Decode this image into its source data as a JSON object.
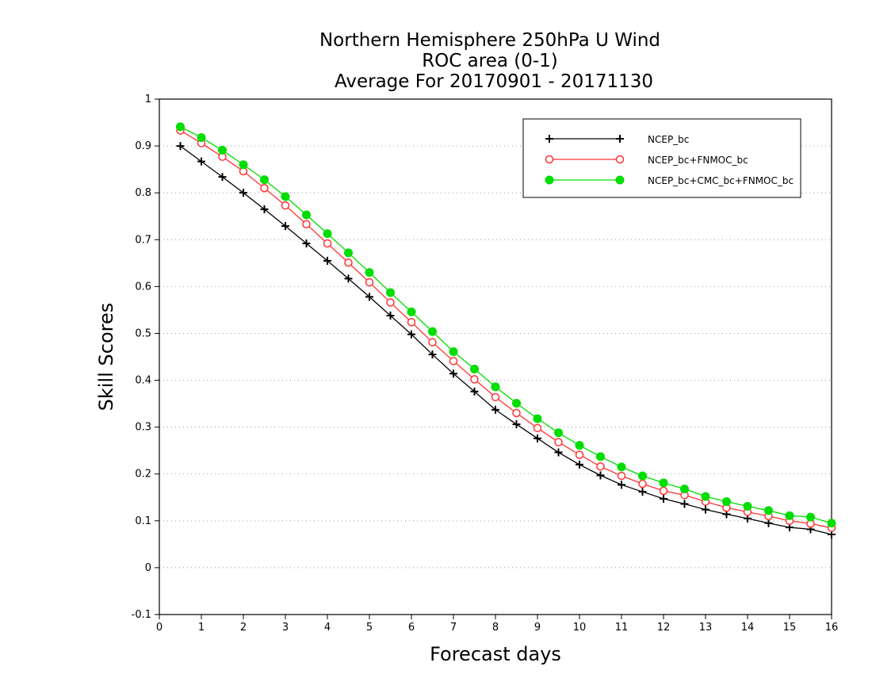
{
  "chart_data": {
    "type": "line",
    "title_lines": [
      "Northern Hemisphere 250hPa U Wind",
      "ROC area (0-1)",
      "Average For 20170901 - 20171130"
    ],
    "xlabel": "Forecast days",
    "ylabel": "Skill Scores",
    "xlim": [
      0,
      16
    ],
    "ylim": [
      -0.1,
      1
    ],
    "x_ticks": [
      "0",
      "1",
      "2",
      "3",
      "4",
      "5",
      "6",
      "7",
      "8",
      "9",
      "10",
      "11",
      "12",
      "13",
      "14",
      "15",
      "16"
    ],
    "y_ticks": [
      "-0.1",
      "0",
      "0.1",
      "0.2",
      "0.3",
      "0.4",
      "0.5",
      "0.6",
      "0.7",
      "0.8",
      "0.9",
      "1"
    ],
    "grid": "horizontal dotted",
    "legend_position": "top-right",
    "x": [
      0.5,
      1,
      1.5,
      2,
      2.5,
      3,
      3.5,
      4,
      4.5,
      5,
      5.5,
      6,
      6.5,
      7,
      7.5,
      8,
      8.5,
      9,
      9.5,
      10,
      10.5,
      11,
      11.5,
      12,
      12.5,
      13,
      13.5,
      14,
      14.5,
      15,
      15.5,
      16
    ],
    "series": [
      {
        "name": "NCEP_bc",
        "color": "#000000",
        "marker": "plus",
        "values": [
          0.9,
          0.867,
          0.834,
          0.8,
          0.765,
          0.729,
          0.692,
          0.655,
          0.617,
          0.578,
          0.538,
          0.498,
          0.455,
          0.414,
          0.376,
          0.337,
          0.306,
          0.276,
          0.246,
          0.22,
          0.197,
          0.177,
          0.162,
          0.147,
          0.136,
          0.124,
          0.114,
          0.105,
          0.095,
          0.086,
          0.082,
          0.071
        ]
      },
      {
        "name": "NCEP_bc+FNMOC_bc",
        "color": "#ff3333",
        "marker": "open-circle",
        "values": [
          0.933,
          0.906,
          0.877,
          0.846,
          0.81,
          0.773,
          0.733,
          0.692,
          0.651,
          0.609,
          0.566,
          0.524,
          0.481,
          0.441,
          0.402,
          0.364,
          0.33,
          0.298,
          0.268,
          0.241,
          0.216,
          0.196,
          0.179,
          0.164,
          0.155,
          0.141,
          0.128,
          0.119,
          0.11,
          0.1,
          0.094,
          0.085
        ]
      },
      {
        "name": "NCEP_bc+CMC_bc+FNMOC_bc",
        "color": "#00dd00",
        "marker": "filled-circle",
        "values": [
          0.941,
          0.918,
          0.891,
          0.86,
          0.828,
          0.792,
          0.753,
          0.713,
          0.672,
          0.63,
          0.587,
          0.546,
          0.504,
          0.461,
          0.424,
          0.386,
          0.351,
          0.318,
          0.288,
          0.261,
          0.237,
          0.215,
          0.196,
          0.181,
          0.168,
          0.152,
          0.141,
          0.131,
          0.122,
          0.111,
          0.108,
          0.095
        ]
      }
    ]
  }
}
